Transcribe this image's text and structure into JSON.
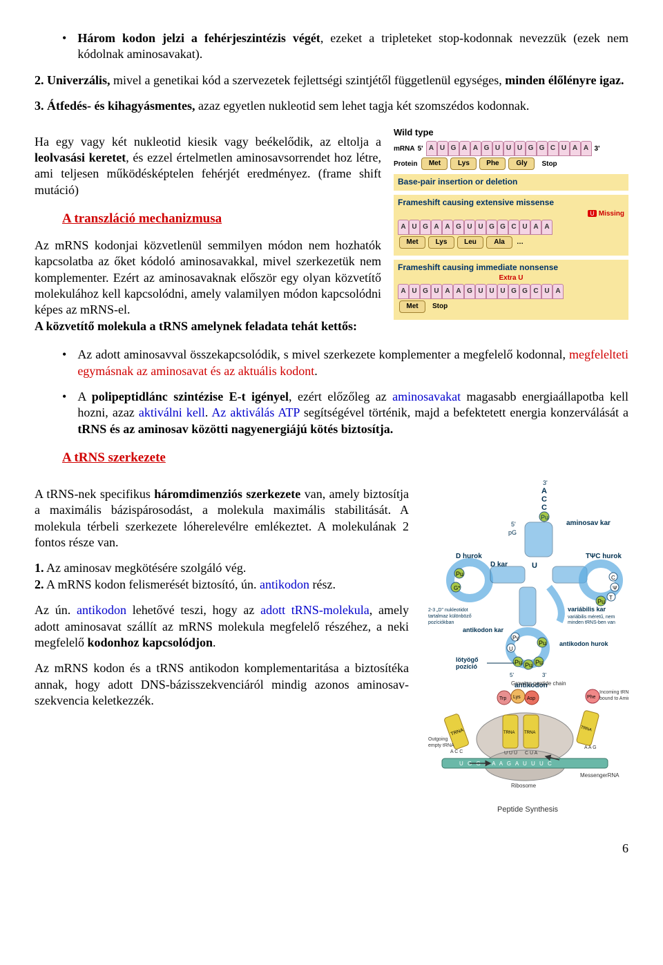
{
  "bullet1": {
    "pre": "Három kodon jelzi a fehérjeszintézis végét",
    "post": ", ezeket a tripleteket stop-kodonnak nevezzük (ezek nem kódolnak aminosavakat)."
  },
  "item2": {
    "num": "2. ",
    "bold1": "Univerzális,",
    "text1": " mivel a genetikai kód a szervezetek fejlettségi szintjétől függetlenül egységes, ",
    "bold2": "minden élőlényre igaz."
  },
  "item3": {
    "num": "3. ",
    "bold1": "Átfedés- és kihagyásmentes,",
    "text1": " azaz egyetlen nukleotid sem lehet tagja két szomszédos kodonnak."
  },
  "para_frameshift": {
    "t1": "Ha egy vagy két nukleotid kiesik vagy beékelődik, az eltolja a ",
    "b1": "leolvasási keretet",
    "t2": ", és ezzel értelmetlen aminosavsorrendet hoz létre, ami teljesen működésképtelen fehérjét eredményez. (frame shift mutáció)"
  },
  "section_transzlacio": "A transzláció mechanizmusa",
  "para_transz": {
    "t1": "Az mRNS kodonjai közvetlenül semmilyen módon nem hozhatók kapcsolatba az őket kódoló aminosavakkal, mivel szerkezetük nem komplementer. Ezért az aminosavaknak először egy olyan közvetítő molekulához kell kapcsolódni, amely valamilyen módon kapcsolódni képes az mRNS-el.",
    "b1": "A közvetítő molekula a tRNS amelynek feladata tehát kettős:"
  },
  "bullet_kov1": {
    "t1": "Az adott aminosavval összekapcsolódik, s mivel szerkezete komplementer a megfelelő kodonnal, ",
    "r1": "megfelelteti egymásnak az aminosavat és az aktuális kodont",
    "t2": "."
  },
  "bullet_kov2": {
    "t1": "A ",
    "b1": "polipeptidlánc szintézise E-t igényel",
    "t2": ", ezért előzőleg az ",
    "bl1": "aminosavakat",
    "t3": " magasabb energiaállapotba kell hozni, azaz ",
    "bl2": "aktiválni kell",
    "t4": ". ",
    "bl3": "Az aktiválás ATP",
    "t5": " segítségével történik, majd a befektetett energia konzerválását a ",
    "b2": "tRNS és az aminosav közötti nagyenergiájú kötés biztosítja."
  },
  "section_trns": "A tRNS szerkezete",
  "para_trns1": {
    "t1": "A tRNS-nek specifikus ",
    "b1": "háromdimenziós szerkezete",
    "t2": " van, amely biztosítja a maximális bázispárosodást, a molekula maximális stabilitását. A molekula térbeli szerkezete lóherelevélre emlékeztet. A molekulának 2 fontos része van."
  },
  "list_trns1": {
    "num": "1.",
    "text": "  Az aminosav megkötésére szolgáló vég."
  },
  "list_trns2": {
    "num": "2.",
    "t1": "  A mRNS kodon felismerését biztosító, ún. ",
    "bl": "antikodon",
    "t2": " rész."
  },
  "para_antikodon": {
    "t1": "Az ún. ",
    "bl1": "antikodon",
    "t2": " lehetővé teszi, hogy az  ",
    "bl2": "adott tRNS-molekula",
    "t3": ", amely adott aminosavat szállít  az mRNS molekula megfelelő részéhez, a neki megfelelő ",
    "b1": "kodonhoz kapcsolódjon",
    "t4": "."
  },
  "para_komp": {
    "t1": "Az mRNS kodon és a tRNS antikodon komplementaritása a biztosítéka annak, hogy adott DNS-bázisszekvenciáról mindig azonos aminosav-szekvencia keletkezzék."
  },
  "page_number": "6",
  "fig_frameshift": {
    "wild_type": "Wild type",
    "mrna": "mRNA",
    "protein": "Protein",
    "end5": "5'",
    "end3": "3'",
    "seq1": [
      "A",
      "U",
      "G",
      "A",
      "A",
      "G",
      "U",
      "U",
      "U",
      "G",
      "G",
      "C",
      "U",
      "A",
      "A"
    ],
    "prot1": [
      "Met",
      "Lys",
      "Phe",
      "Gly"
    ],
    "stop": "Stop",
    "band": "Base-pair insertion or deletion",
    "fs1": "Frameshift causing extensive missense",
    "missing": "Missing",
    "u_mark": "U",
    "seq2": [
      "A",
      "U",
      "G",
      "A",
      "A",
      "G",
      "U",
      "U",
      "G",
      "G",
      "C",
      "U",
      "A",
      "A"
    ],
    "prot2": [
      "Met",
      "Lys",
      "Leu",
      "Ala"
    ],
    "dots": "…",
    "fs2": "Frameshift causing immediate nonsense",
    "extra": "Extra U",
    "seq3": [
      "A",
      "U",
      "G",
      "U",
      "A",
      "A",
      "G",
      "U",
      "U",
      "U",
      "G",
      "G",
      "C",
      "U",
      "A"
    ],
    "prot3": [
      "Met"
    ]
  },
  "fig_trna": {
    "labels": {
      "aminosav_kar": "aminosav kar",
      "d_hurok": "D hurok",
      "d_kar": "D kar",
      "t_hurok": "TΨC hurok",
      "var_kar": "variábilis kar",
      "var_desc": "variábilis méretű, nem minden tRNS-ben van",
      "antikodon_kar": "antikodon kar",
      "antikodon_hurok": "antikodon hurok",
      "antikodon": "antikodon",
      "lotyogo": "lötyögő pozíció",
      "d_note": "2-3 „D\" nukleotidot tartalmaz különböző pozíciókban",
      "acc": "A\nC\nC",
      "pu": "Pu",
      "py": "Py",
      "end5": "5'",
      "end3": "3'",
      "pg": "pG"
    },
    "colors": {
      "stem": "#5aa9e0",
      "loop_outline": "#2a5a80",
      "pu_fill": "#a8c848",
      "text": "#003050"
    }
  },
  "fig_peptide": {
    "title": "Peptide Synthesis",
    "labels": {
      "growing": "Growing peptide chain",
      "outgoing": "Outgoing empty tRNA",
      "incoming": "Incoming tRNA bound to Amino Acid",
      "ribosome": "Ribosome",
      "mrna": "MessengerRNA",
      "trna": "TRNA"
    },
    "amino": [
      "Trp",
      "Lys",
      "Asp",
      "Phe"
    ],
    "mrna_seq": "U G G A A A G A U U U C",
    "codons": [
      "U U U",
      "C U A"
    ],
    "anticodon_out": "A C C",
    "anticodon_in": "A A G",
    "colors": {
      "mrna": "#6ab8a8",
      "trna": "#e8d040",
      "ribo_top": "#d8d0c8",
      "ribo_bot": "#c8c0b8",
      "aa1": "#e89090",
      "aa2": "#f0b860",
      "aa3": "#e87060",
      "aa4": "#f08888"
    }
  }
}
